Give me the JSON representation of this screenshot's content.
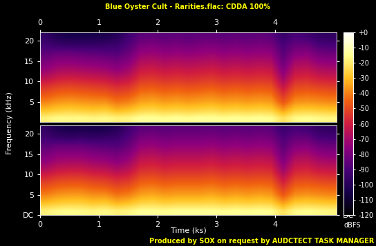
{
  "chart_data": {
    "type": "heatmap",
    "title": "Blue Oyster Cult - Rarities.flac: CDDA 100%",
    "footer": "Produced by SOX on request by AUDCTECT TASK MANAGER",
    "xlabel": "Time (ks)",
    "ylabel": "Frequency (kHz)",
    "xlim": [
      0,
      5.05
    ],
    "xticks": [
      0,
      1,
      2,
      3,
      4
    ],
    "ylim": [
      0,
      22.05
    ],
    "channels": [
      {
        "yticks": [
          5,
          10,
          15,
          20
        ],
        "cells": [
          [
            -18,
            -16,
            -16,
            -16,
            -17,
            -16,
            -18,
            -17,
            -14,
            -14,
            -15,
            -14,
            -15,
            -14,
            -14,
            -15,
            -14,
            -15,
            -14,
            -15,
            -22,
            -16,
            -15,
            -16,
            -17
          ],
          [
            -30,
            -28,
            -27,
            -28,
            -29,
            -28,
            -32,
            -30,
            -26,
            -25,
            -27,
            -26,
            -27,
            -26,
            -25,
            -27,
            -26,
            -27,
            -26,
            -27,
            -36,
            -28,
            -27,
            -28,
            -29
          ],
          [
            -40,
            -37,
            -36,
            -37,
            -38,
            -38,
            -42,
            -40,
            -35,
            -34,
            -36,
            -35,
            -36,
            -35,
            -34,
            -36,
            -35,
            -36,
            -35,
            -36,
            -48,
            -38,
            -37,
            -38,
            -39
          ],
          [
            -48,
            -45,
            -44,
            -45,
            -46,
            -47,
            -50,
            -48,
            -42,
            -41,
            -43,
            -42,
            -43,
            -42,
            -41,
            -43,
            -42,
            -43,
            -42,
            -43,
            -56,
            -45,
            -44,
            -45,
            -46
          ],
          [
            -56,
            -53,
            -52,
            -53,
            -54,
            -55,
            -58,
            -56,
            -49,
            -48,
            -50,
            -49,
            -50,
            -49,
            -48,
            -50,
            -49,
            -50,
            -49,
            -50,
            -64,
            -52,
            -51,
            -53,
            -54
          ],
          [
            -66,
            -62,
            -61,
            -62,
            -63,
            -64,
            -67,
            -64,
            -56,
            -55,
            -57,
            -56,
            -57,
            -56,
            -55,
            -57,
            -56,
            -57,
            -56,
            -57,
            -72,
            -59,
            -58,
            -61,
            -62
          ],
          [
            -74,
            -70,
            -69,
            -70,
            -71,
            -72,
            -75,
            -71,
            -62,
            -61,
            -63,
            -62,
            -63,
            -62,
            -61,
            -63,
            -62,
            -63,
            -62,
            -63,
            -78,
            -65,
            -64,
            -68,
            -69
          ],
          [
            -80,
            -76,
            -76,
            -77,
            -78,
            -79,
            -81,
            -77,
            -68,
            -67,
            -69,
            -68,
            -69,
            -68,
            -67,
            -69,
            -68,
            -69,
            -68,
            -69,
            -83,
            -71,
            -70,
            -75,
            -76
          ],
          [
            -86,
            -84,
            -84,
            -85,
            -86,
            -87,
            -88,
            -83,
            -74,
            -73,
            -75,
            -74,
            -75,
            -74,
            -73,
            -75,
            -74,
            -75,
            -74,
            -75,
            -87,
            -78,
            -77,
            -82,
            -83
          ],
          [
            -92,
            -95,
            -96,
            -96,
            -96,
            -95,
            -94,
            -88,
            -80,
            -79,
            -81,
            -80,
            -81,
            -80,
            -79,
            -81,
            -80,
            -81,
            -80,
            -81,
            -90,
            -84,
            -84,
            -90,
            -91
          ],
          [
            -97,
            -102,
            -104,
            -104,
            -104,
            -103,
            -100,
            -92,
            -86,
            -85,
            -86,
            -85,
            -86,
            -85,
            -85,
            -86,
            -85,
            -86,
            -85,
            -86,
            -95,
            -90,
            -92,
            -96,
            -97
          ]
        ]
      },
      {
        "yticks": [
          {
            "value": 0,
            "label": "DC"
          },
          5,
          10,
          15,
          20
        ],
        "cells": [
          [
            -18,
            -16,
            -15,
            -16,
            -17,
            -16,
            -18,
            -17,
            -14,
            -14,
            -15,
            -14,
            -14,
            -14,
            -14,
            -15,
            -14,
            -15,
            -14,
            -15,
            -22,
            -16,
            -15,
            -16,
            -17
          ],
          [
            -30,
            -28,
            -27,
            -27,
            -29,
            -28,
            -32,
            -30,
            -26,
            -25,
            -27,
            -26,
            -26,
            -26,
            -25,
            -27,
            -26,
            -27,
            -26,
            -27,
            -36,
            -28,
            -27,
            -28,
            -29
          ],
          [
            -40,
            -37,
            -36,
            -36,
            -38,
            -38,
            -42,
            -40,
            -35,
            -34,
            -36,
            -35,
            -35,
            -35,
            -34,
            -36,
            -35,
            -36,
            -35,
            -36,
            -47,
            -38,
            -37,
            -38,
            -39
          ],
          [
            -48,
            -45,
            -44,
            -44,
            -46,
            -47,
            -50,
            -48,
            -42,
            -41,
            -43,
            -42,
            -42,
            -42,
            -41,
            -43,
            -42,
            -43,
            -42,
            -43,
            -55,
            -45,
            -44,
            -45,
            -46
          ],
          [
            -56,
            -53,
            -52,
            -52,
            -54,
            -55,
            -58,
            -56,
            -49,
            -48,
            -50,
            -49,
            -49,
            -49,
            -48,
            -50,
            -49,
            -50,
            -49,
            -50,
            -63,
            -52,
            -51,
            -53,
            -54
          ],
          [
            -66,
            -62,
            -61,
            -61,
            -63,
            -64,
            -67,
            -64,
            -56,
            -55,
            -57,
            -56,
            -56,
            -56,
            -55,
            -57,
            -56,
            -57,
            -56,
            -57,
            -71,
            -59,
            -58,
            -61,
            -62
          ],
          [
            -74,
            -70,
            -69,
            -69,
            -71,
            -72,
            -75,
            -71,
            -62,
            -61,
            -63,
            -62,
            -62,
            -62,
            -61,
            -63,
            -62,
            -63,
            -62,
            -63,
            -77,
            -65,
            -64,
            -68,
            -69
          ],
          [
            -80,
            -76,
            -76,
            -76,
            -78,
            -79,
            -81,
            -77,
            -68,
            -67,
            -69,
            -68,
            -68,
            -68,
            -67,
            -69,
            -68,
            -69,
            -68,
            -69,
            -82,
            -71,
            -70,
            -75,
            -76
          ],
          [
            -86,
            -84,
            -84,
            -84,
            -86,
            -87,
            -88,
            -83,
            -74,
            -73,
            -75,
            -74,
            -74,
            -74,
            -73,
            -75,
            -74,
            -75,
            -74,
            -75,
            -86,
            -78,
            -77,
            -82,
            -83
          ],
          [
            -92,
            -95,
            -96,
            -95,
            -96,
            -95,
            -94,
            -88,
            -80,
            -79,
            -81,
            -80,
            -80,
            -80,
            -79,
            -81,
            -80,
            -81,
            -80,
            -81,
            -89,
            -84,
            -84,
            -90,
            -91
          ],
          [
            -97,
            -102,
            -104,
            -103,
            -104,
            -103,
            -100,
            -92,
            -86,
            -85,
            -86,
            -85,
            -85,
            -85,
            -85,
            -86,
            -85,
            -86,
            -85,
            -86,
            -94,
            -90,
            -92,
            -96,
            -97
          ]
        ]
      }
    ],
    "colorbar": {
      "label": "dBFS",
      "range": [
        -120,
        0
      ],
      "ticks": [
        {
          "value": 0,
          "label": "+0"
        },
        -10,
        -20,
        -30,
        -40,
        -50,
        -60,
        -70,
        -80,
        -90,
        -100,
        -110,
        -120
      ]
    }
  }
}
